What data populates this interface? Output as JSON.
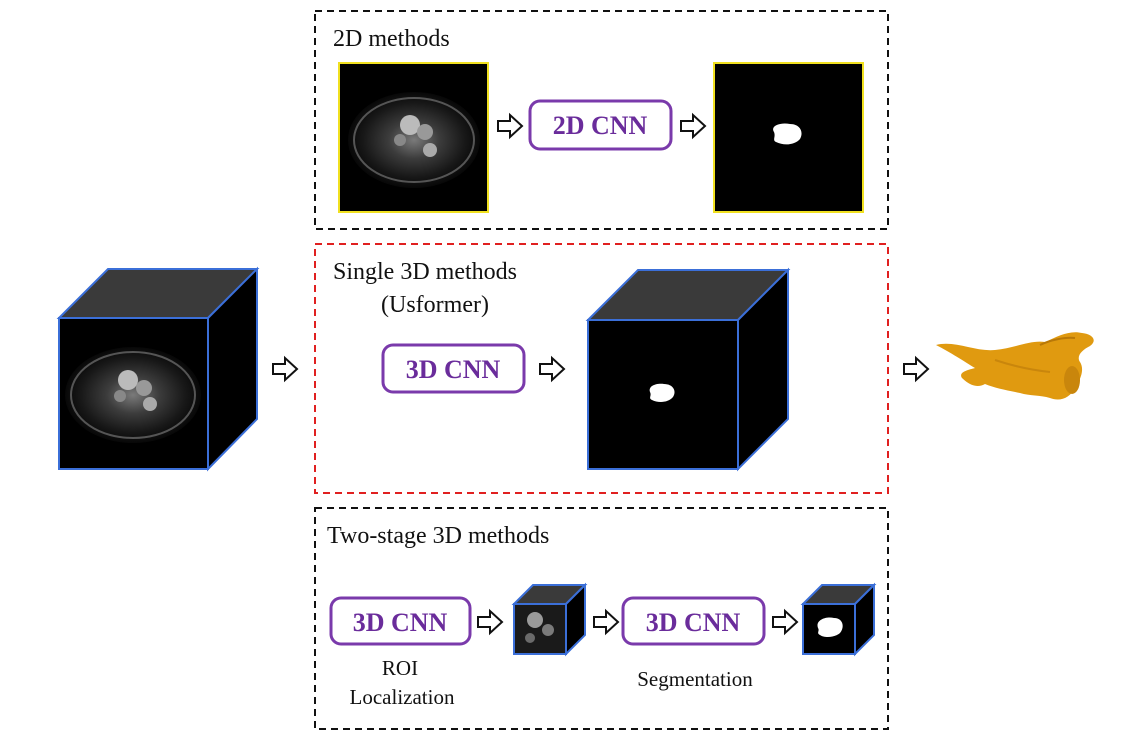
{
  "panels": {
    "two_d": {
      "title": "2D methods",
      "cnn_label": "2D CNN"
    },
    "single_3d": {
      "title_line1": "Single 3D methods",
      "title_line2": "(Usformer)",
      "cnn_label": "3D CNN"
    },
    "two_stage": {
      "title": "Two-stage 3D methods",
      "stage1_label": "3D CNN",
      "stage1_caption_line1": "ROI",
      "stage1_caption_line2": "Localization",
      "stage2_label": "3D CNN",
      "stage2_caption": "Segmentation"
    }
  },
  "colors": {
    "cnn_box": "#7a3aab",
    "cnn_text": "#6a2c9b",
    "cube_edge": "#3b6fd8",
    "slice_border": "#f0e020",
    "single_3d_border": "#e02020",
    "panel_border": "#111111",
    "mesh": "#e09a10",
    "cube_top": "#3a3a3a"
  },
  "icons": {
    "arrow": "hollow-right-arrow-icon",
    "mesh": "3d-atrium-mesh"
  }
}
